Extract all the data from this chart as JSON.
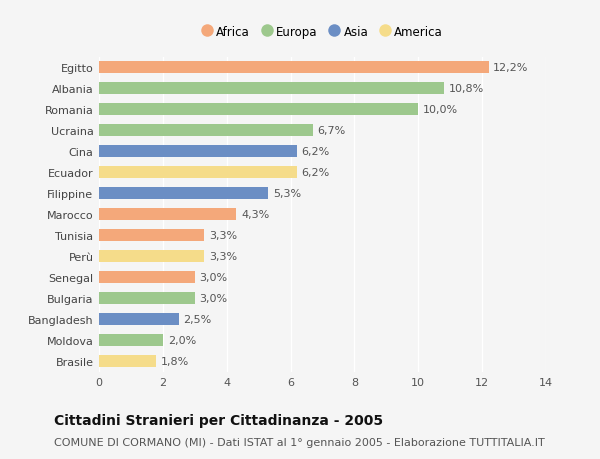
{
  "countries": [
    "Egitto",
    "Albania",
    "Romania",
    "Ucraina",
    "Cina",
    "Ecuador",
    "Filippine",
    "Marocco",
    "Tunisia",
    "Perù",
    "Senegal",
    "Bulgaria",
    "Bangladesh",
    "Moldova",
    "Brasile"
  ],
  "values": [
    12.2,
    10.8,
    10.0,
    6.7,
    6.2,
    6.2,
    5.3,
    4.3,
    3.3,
    3.3,
    3.0,
    3.0,
    2.5,
    2.0,
    1.8
  ],
  "continents": [
    "Africa",
    "Europa",
    "Europa",
    "Europa",
    "Asia",
    "America",
    "Asia",
    "Africa",
    "Africa",
    "America",
    "Africa",
    "Europa",
    "Asia",
    "Europa",
    "America"
  ],
  "colors": {
    "Africa": "#F4A87A",
    "Europa": "#9DC88D",
    "Asia": "#6B8EC4",
    "America": "#F5DC8A"
  },
  "legend_order": [
    "Africa",
    "Europa",
    "Asia",
    "America"
  ],
  "xlim": [
    0,
    14
  ],
  "xticks": [
    0,
    2,
    4,
    6,
    8,
    10,
    12,
    14
  ],
  "title": "Cittadini Stranieri per Cittadinanza - 2005",
  "subtitle": "COMUNE DI CORMANO (MI) - Dati ISTAT al 1° gennaio 2005 - Elaborazione TUTTITALIA.IT",
  "bar_height": 0.55,
  "background_color": "#f5f5f5",
  "grid_color": "#ffffff",
  "label_fontsize": 8,
  "tick_fontsize": 8,
  "title_fontsize": 10,
  "subtitle_fontsize": 8
}
